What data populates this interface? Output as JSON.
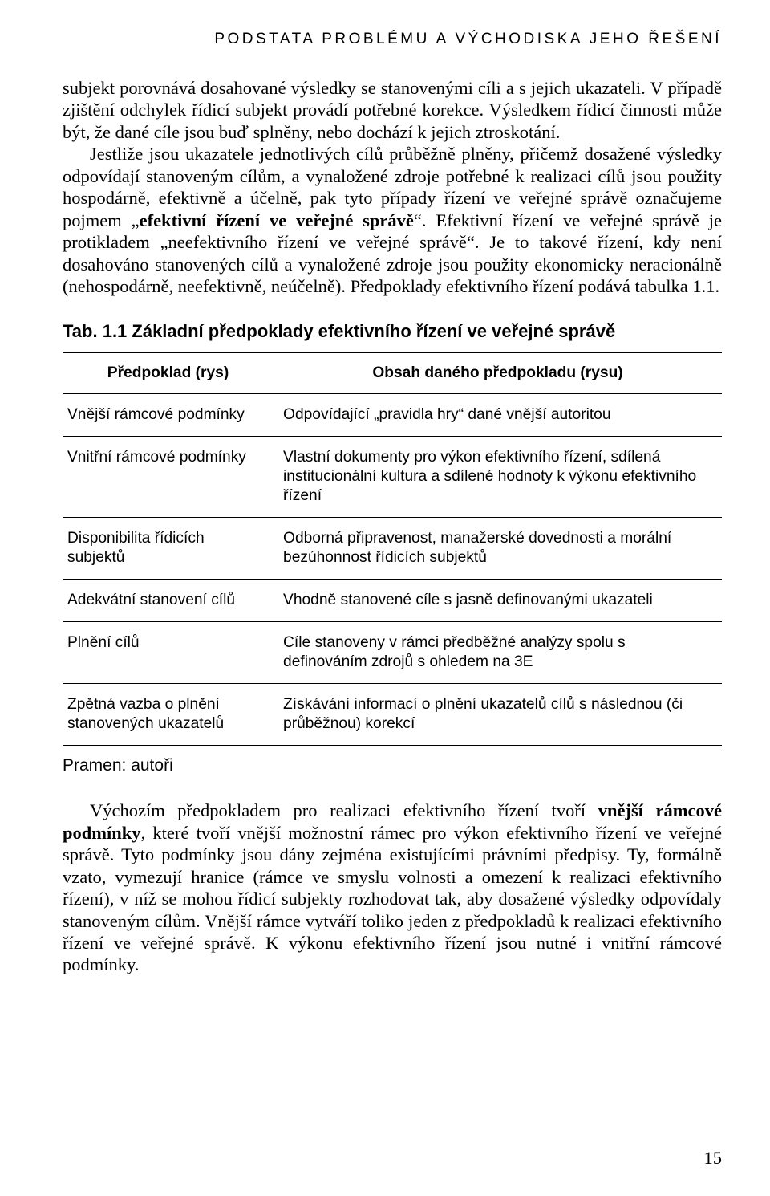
{
  "running_head": "PODSTATA PROBLÉMU A VÝCHODISKA JEHO ŘEŠENÍ",
  "para1_a": "subjekt porovnává dosahované výsledky se stanovenými cíli a s jejich ukazateli. V případě zjištění odchylek řídicí subjekt provádí potřebné korekce. Výsledkem řídicí činnosti může být, že dané cíle jsou buď splněny, nebo dochází k jejich ztroskotání.",
  "para2_a": "Jestliže jsou ukazatele jednotlivých cílů průběžně plněny, přičemž dosažené výsledky odpovídají stanoveným cílům, a vynaložené zdroje potřebné k realizaci cílů jsou použity hospodárně, efektivně a účelně, pak tyto případy řízení ve veřejné správě označujeme pojmem „",
  "para2_bold": "efektivní řízení ve veřejné správě",
  "para2_b": "“. Efektivní řízení ve veřejné správě je protikladem „neefektivního řízení ve veřejné správě“. Je to takové řízení, kdy není dosahováno stanovených cílů a vynaložené zdroje jsou použity ekonomicky neracionálně (nehospodárně, neefektivně, neúčelně). Předpoklady efektivního řízení podává tabulka 1.1.",
  "table_caption": "Tab. 1.1 Základní předpoklady efektivního řízení ve veřejné správě",
  "table": {
    "col1_header": "Předpoklad (rys)",
    "col2_header": "Obsah daného předpokladu (rysu)",
    "rows": [
      {
        "c1": "Vnější rámcové podmínky",
        "c2": "Odpovídající „pravidla hry“ dané vnější autoritou"
      },
      {
        "c1": "Vnitřní rámcové podmínky",
        "c2": "Vlastní dokumenty pro výkon efektivního řízení, sdílená institucionální kultura a sdílené hodnoty k výkonu efektivního řízení"
      },
      {
        "c1": "Disponibilita řídicích subjektů",
        "c2": "Odborná připravenost, manažerské dovednosti a morální bezúhonnost řídicích subjektů"
      },
      {
        "c1": "Adekvátní stanovení cílů",
        "c2": "Vhodně stanovené cíle s jasně definovanými ukazateli"
      },
      {
        "c1": "Plnění cílů",
        "c2": "Cíle stanoveny v rámci předběžné analýzy spolu s definováním zdrojů s ohledem na 3E"
      },
      {
        "c1": "Zpětná vazba o plnění stanovených ukazatelů",
        "c2": "Získávání informací o plnění ukazatelů cílů s následnou (či průběžnou) korekcí"
      }
    ]
  },
  "table_source": "Pramen: autoři",
  "para3_a": "Výchozím předpokladem pro realizaci efektivního řízení tvoří ",
  "para3_bold": "vnější rámcové podmínky",
  "para3_b": ", které tvoří vnější možnostní rámec pro výkon efektivního řízení ve veřejné správě. Tyto podmínky jsou dány zejména existujícími právními předpisy. Ty, formálně vzato, vymezují hranice (rámce ve smyslu volnosti a omezení k realizaci efektivního řízení), v níž se mohou řídicí subjekty rozhodovat tak, aby dosažené výsledky odpovídaly stanoveným cílům. Vnější rámce vytváří toliko jeden z předpokladů k realizaci efektivního řízení ve veřejné správě. K výkonu efektivního řízení jsou nutné i vnitřní rámcové podmínky.",
  "page_number": "15"
}
